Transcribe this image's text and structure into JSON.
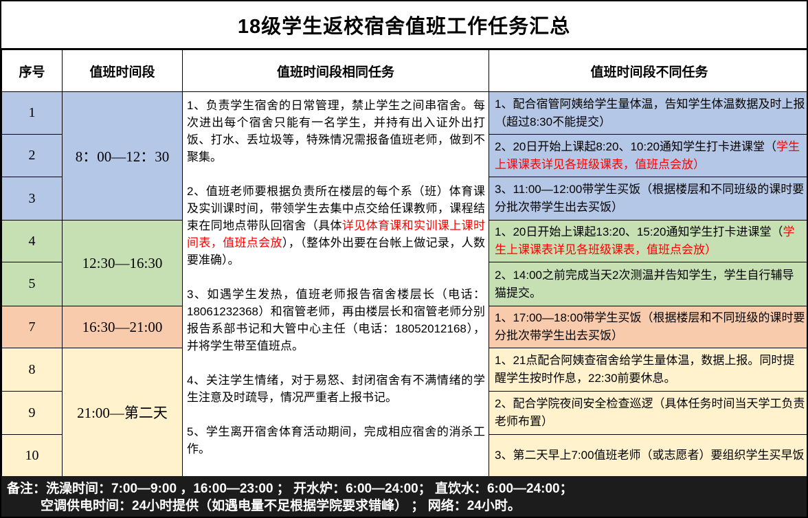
{
  "title": "18级学生返校宿舍值班工作任务汇总",
  "header": {
    "seq": "序号",
    "period": "值班时间段",
    "same_tasks": "值班时间段相同任务",
    "diff_tasks": "值班时间段不同任务"
  },
  "seq": [
    "1",
    "2",
    "3",
    "4",
    "5",
    "7",
    "8",
    "9",
    "10"
  ],
  "periods": [
    {
      "label": "8：00—12：30",
      "color": "#B4C7E7",
      "rows": "1-3"
    },
    {
      "label": "12:30—16:30",
      "color": "#C6E0B4",
      "rows": "4-5"
    },
    {
      "label": "16:30—21:00",
      "color": "#F8CBAD",
      "rows": "7"
    },
    {
      "label": "21:00—第二天",
      "color": "#FFF2CC",
      "rows": "8-10"
    }
  ],
  "same": {
    "p1": "1、负责学生宿舍的日常管理，禁止学生之间串宿舍。每次进出每个宿舍只能有一名学生，并持有出入证外出打饭、打水、丢垃圾等，特殊情况需报备值班老师，做到不聚集。",
    "p2_pre": "2、值班老师要根据负责所在楼层的每个系（班）体育课及实训课时间，带领学生去集中点交给任课教师，课程结束在同地点带队回宿舍（具体",
    "p2_red": "详见体育课和实训课上课时间表，值班点会放",
    "p2_post": "），（整体外出要在台帐上做记录，人数要准确）。",
    "p3": "3、如遇学生发热，值班老师报告宿舍楼层长（电话：18061232368）和宿管老师，再由楼层长和宿管老师分别报告系部书记和大管中心主任（电话：18052012168），并将学生带至值班点。",
    "p4": "4、关注学生情绪，对于易怒、封闭宿舍有不满情绪的学生注意及时疏导，情况严重者上报书记。",
    "p5": "5、学生离开宿舍体育活动期间，完成相应宿舍的消杀工作。"
  },
  "diff": [
    {
      "text": "1、配合宿管阿姨给学生量体温，告知学生体温数据及时上报（超过8:30不能提交）"
    },
    {
      "pre": "2、20日开始上课起8:20、10:20通知学生打卡进课堂（",
      "red": "学生上课课表详见各班级课表，值班点会放）"
    },
    {
      "text": "3、11:00—12:00带学生买饭（根据楼层和不同班级的课时要分批次带学生出去买饭）"
    },
    {
      "pre": "1、20日开始上课起13:20、15:20通知学生打卡进课堂（",
      "red": "学生上课课表详见各班级课表，值班点会放）"
    },
    {
      "text": "2、14:00之前完成当天2次测温并告知学生，学生自行辅导猫提交。"
    },
    {
      "text": "1、17:00—18:00带学生买饭（根据楼层和不同班级的课时要分批次带学生出去买饭）"
    },
    {
      "text": "1、21点配合阿姨查宿舍给学生量体温，数据上报。同时提醒学生按时作息，22:30前要休息。"
    },
    {
      "text": "2、配合学院夜间安全检查巡逻（具体任务时间当天学工负责老师布置）"
    },
    {
      "text": "3、第二天早上7:00值班老师（或志愿者）要组织学生买早饭"
    }
  ],
  "footer": {
    "line1": "备注：洗澡时间：7:00—9:00 ，16:00—23:00 ； 开水炉：6:00—24:00；  直饮水：6:00—24:00；",
    "line2": "空调供电时间：24小时提供（如遇电量不足根据学院要求错峰） ；  网络：24小时。"
  },
  "colors": {
    "group_blue": "#B4C7E7",
    "group_green": "#C6E0B4",
    "group_orange": "#F8CBAD",
    "group_yellow": "#FFF2CC",
    "highlight_text": "#FF0000",
    "footer_bg": "#1C1C1C",
    "footer_text": "#FFFFFF"
  }
}
